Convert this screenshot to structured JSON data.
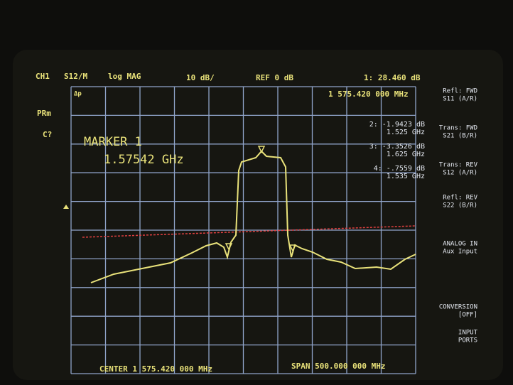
{
  "header": {
    "channel": "CH1",
    "parameter": "S12/M",
    "format": "log MAG",
    "scale": "10 dB/",
    "reference": "REF 0 dB",
    "marker_readout": "1: 28.460 dB",
    "marker_frequency": "1 575.420 000 MHz"
  },
  "left_labels": [
    "PRm",
    "C?"
  ],
  "grid_label": "Δp",
  "marker_box": {
    "title": "MARKER 1",
    "frequency": "1.57542 GHz"
  },
  "markers": [
    {
      "value": "2: -1.9423 dB",
      "frequency": "1.525 GHz"
    },
    {
      "value": "3: -3.3526 dB",
      "frequency": "1.625 GHz"
    },
    {
      "value": "4: -.7559 dB",
      "frequency": "1.535 GHz"
    }
  ],
  "softkeys": [
    {
      "lines": [
        "Refl: FWD",
        "S11 (A/R)"
      ]
    },
    {
      "lines": [
        "Trans: FWD",
        "S21 (B/R)"
      ]
    },
    {
      "lines": [
        "Trans: REV",
        "S12 (A/R)"
      ]
    },
    {
      "lines": [
        "Refl: REV",
        "S22 (B/R)"
      ]
    },
    {
      "lines": [
        "ANALOG IN",
        "Aux Input"
      ]
    },
    {
      "lines": [
        "CONVERSION",
        "[OFF]"
      ]
    },
    {
      "lines": [
        "INPUT",
        "PORTS"
      ]
    }
  ],
  "footer": {
    "center": "CENTER 1 575.420 000 MHz",
    "span": "SPAN 500.000 000 MHz"
  }
}
